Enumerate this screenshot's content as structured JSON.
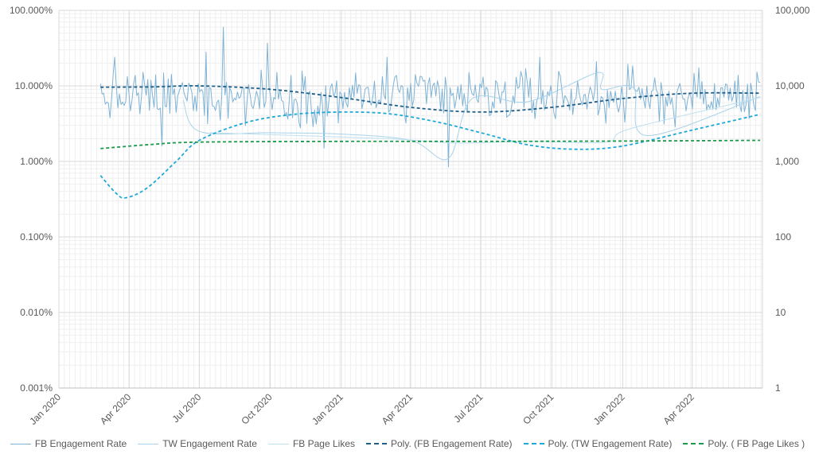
{
  "chart_data": {
    "type": "line",
    "title": "",
    "x_axis": {
      "type": "date",
      "range": [
        "2020-01-01",
        "2022-07-01"
      ],
      "tick_labels": [
        "Jan 2020",
        "Apr 2020",
        "Jul 2020",
        "Oct 2020",
        "Jan 2021",
        "Apr 2021",
        "Jul 2021",
        "Oct 2021",
        "Jan 2022",
        "Apr 2022"
      ],
      "tick_dates": [
        "2020-01-01",
        "2020-04-01",
        "2020-07-01",
        "2020-10-01",
        "2021-01-01",
        "2021-04-01",
        "2021-07-01",
        "2021-10-01",
        "2022-01-01",
        "2022-04-01"
      ]
    },
    "y_axis_left": {
      "scale": "log",
      "range": [
        0.001,
        100
      ],
      "ticks": [
        0.001,
        0.01,
        0.1,
        1,
        10,
        100
      ],
      "tick_labels": [
        "0.001%",
        "0.010%",
        "0.100%",
        "1.000%",
        "10.000%",
        "100.000%"
      ]
    },
    "y_axis_right": {
      "scale": "log",
      "range": [
        1,
        100000
      ],
      "ticks": [
        1,
        10,
        100,
        1000,
        10000,
        100000
      ],
      "tick_labels": [
        "1",
        "10",
        "100",
        "1,000",
        "10,000",
        "100,000"
      ]
    },
    "grid": true,
    "legend_position": "bottom",
    "series": [
      {
        "name": "FB Engagement Rate",
        "style": "solid",
        "color": "#7fb3d5",
        "axis": "left",
        "date_range": [
          "2020-02-24",
          "2022-06-28"
        ],
        "samples": 420,
        "median": 7.2,
        "log_spread": 0.17,
        "spikes": [
          [
            "2020-08-01",
            60
          ],
          [
            "2020-09-28",
            37
          ],
          [
            "2020-03-14",
            24
          ],
          [
            "2020-07-10",
            28
          ],
          [
            "2021-03-01",
            24
          ],
          [
            "2021-09-15",
            24
          ],
          [
            "2021-11-28",
            21
          ],
          [
            "2021-05-20",
            0.85
          ],
          [
            "2020-05-14",
            1.6
          ],
          [
            "2020-12-10",
            1.5
          ]
        ]
      },
      {
        "name": "TW Engagement Rate",
        "style": "solid",
        "color": "#a9d3ea",
        "axis": "left",
        "points": [
          [
            "2020-06-10",
            6.5
          ],
          [
            "2020-07-01",
            2.5
          ],
          [
            "2020-10-01",
            2.4
          ],
          [
            "2021-01-01",
            2.3
          ],
          [
            "2021-04-01",
            1.9
          ],
          [
            "2021-05-20",
            1.1
          ],
          [
            "2021-06-20",
            6.8
          ],
          [
            "2021-09-01",
            6.2
          ],
          [
            "2021-11-30",
            15
          ],
          [
            "2021-12-05",
            9
          ],
          [
            "2022-01-15",
            9.4
          ],
          [
            "2022-02-01",
            2.2
          ],
          [
            "2022-06-28",
            7.2
          ]
        ]
      },
      {
        "name": "FB Page Likes",
        "style": "solid",
        "color": "#bfe0f0",
        "axis": "right",
        "points": [
          [
            "2020-07-15",
            2400
          ],
          [
            "2021-03-01",
            2000
          ],
          [
            "2021-06-01",
            1750
          ],
          [
            "2021-09-01",
            1850
          ],
          [
            "2021-12-10",
            1800
          ],
          [
            "2022-01-10",
            2700
          ],
          [
            "2022-06-28",
            7000
          ]
        ]
      },
      {
        "name": "Poly. (FB Engagement Rate)",
        "style": "dashed",
        "color": "#1f5f8b",
        "axis": "left",
        "points": [
          [
            "2020-02-24",
            9.6
          ],
          [
            "2020-05-01",
            9.7
          ],
          [
            "2020-07-01",
            10
          ],
          [
            "2020-10-01",
            9
          ],
          [
            "2021-01-01",
            7
          ],
          [
            "2021-04-01",
            5.2
          ],
          [
            "2021-07-01",
            4.5
          ],
          [
            "2021-10-01",
            5.2
          ],
          [
            "2022-01-01",
            6.8
          ],
          [
            "2022-04-01",
            8
          ],
          [
            "2022-06-28",
            8
          ]
        ]
      },
      {
        "name": "Poly. (TW Engagement Rate)",
        "style": "dashed",
        "color": "#1fa9d6",
        "axis": "left",
        "points": [
          [
            "2020-02-24",
            0.65
          ],
          [
            "2020-03-15",
            0.38
          ],
          [
            "2020-03-28",
            0.33
          ],
          [
            "2020-04-25",
            0.45
          ],
          [
            "2020-06-01",
            1.0
          ],
          [
            "2020-07-01",
            1.9
          ],
          [
            "2020-09-01",
            3.3
          ],
          [
            "2020-11-01",
            4.2
          ],
          [
            "2021-01-01",
            4.5
          ],
          [
            "2021-03-01",
            4.3
          ],
          [
            "2021-05-01",
            3.4
          ],
          [
            "2021-07-01",
            2.4
          ],
          [
            "2021-09-01",
            1.65
          ],
          [
            "2021-11-01",
            1.45
          ],
          [
            "2022-01-01",
            1.6
          ],
          [
            "2022-04-01",
            2.6
          ],
          [
            "2022-06-28",
            4.2
          ]
        ]
      },
      {
        "name": "Poly. ( FB Page Likes )",
        "style": "dashed",
        "color": "#1a9a4a",
        "axis": "right",
        "points": [
          [
            "2020-02-24",
            1480
          ],
          [
            "2020-05-01",
            1680
          ],
          [
            "2020-07-01",
            1800
          ],
          [
            "2021-01-01",
            1840
          ],
          [
            "2021-07-01",
            1840
          ],
          [
            "2022-01-01",
            1860
          ],
          [
            "2022-06-28",
            1900
          ]
        ]
      }
    ]
  }
}
